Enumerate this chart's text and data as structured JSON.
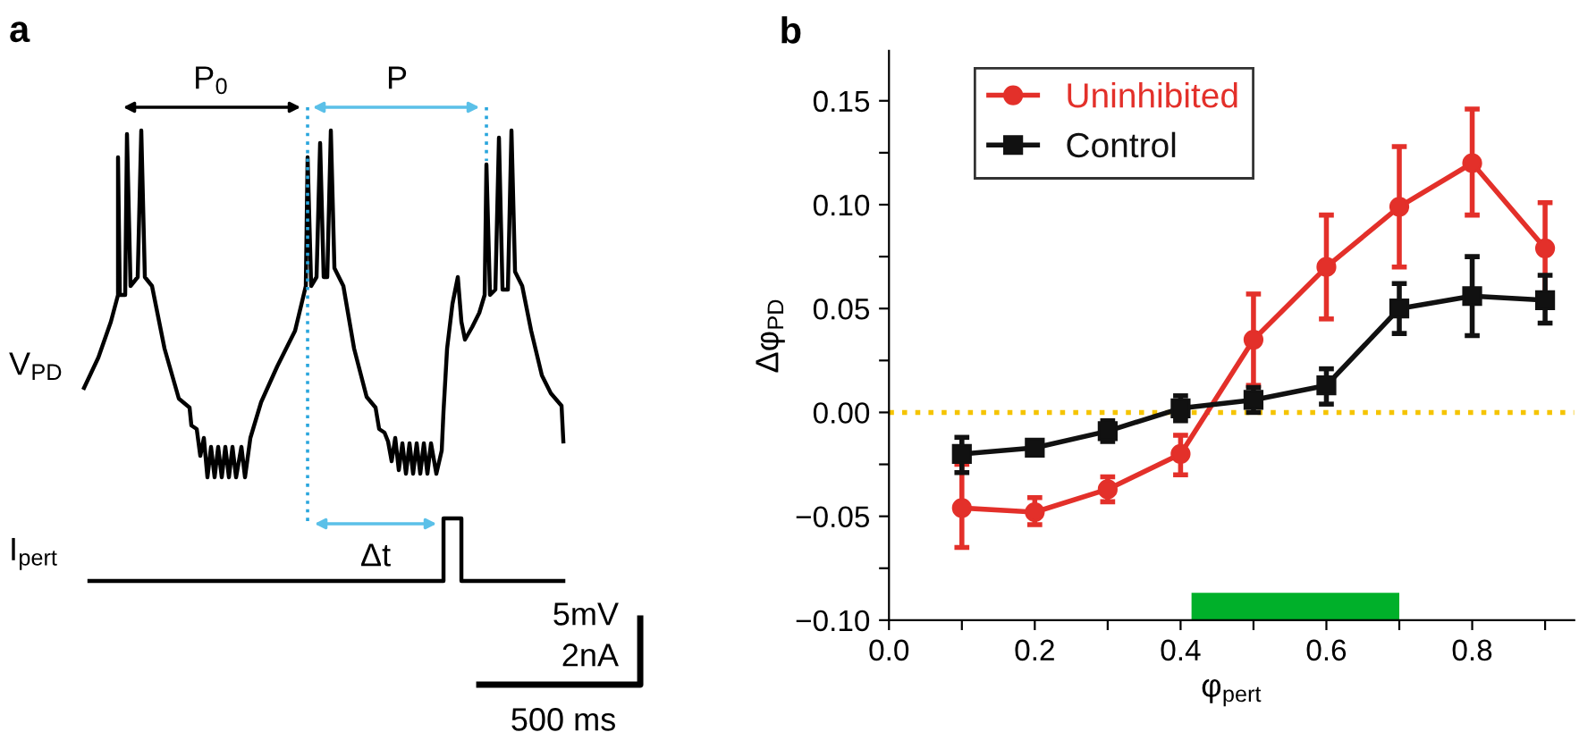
{
  "chart_data": [
    {
      "type": "other",
      "title": "a",
      "annotations": [
        "P$_{0}$",
        "P",
        "V$_{PD}$",
        "I$_{pert}$",
        "Δt",
        "5mV",
        "2nA",
        "500 ms"
      ]
    },
    {
      "type": "line",
      "title": "b",
      "xlabel": "φ$_{pert}$",
      "ylabel": "Δφ$_{PD}$",
      "x": [
        0.1,
        0.2,
        0.3,
        0.4,
        0.5,
        0.6,
        0.7,
        0.8,
        0.9
      ],
      "series": [
        {
          "name": "Uninhibited",
          "color": "#e3302a",
          "marker": "circle",
          "values": [
            -0.046,
            -0.048,
            -0.037,
            -0.02,
            0.035,
            0.07,
            0.099,
            0.12,
            0.079
          ],
          "errors": [
            [
              -0.065,
              -0.025
            ],
            [
              -0.054,
              -0.041
            ],
            [
              -0.043,
              -0.031
            ],
            [
              -0.03,
              -0.011
            ],
            [
              0.013,
              0.057
            ],
            [
              0.045,
              0.095
            ],
            [
              0.07,
              0.128
            ],
            [
              0.095,
              0.146
            ],
            [
              0.057,
              0.101
            ]
          ]
        },
        {
          "name": "Control",
          "color": "#111111",
          "marker": "square",
          "values": [
            -0.02,
            -0.017,
            -0.009,
            0.002,
            0.006,
            0.013,
            0.05,
            0.056,
            0.054
          ],
          "errors": [
            [
              -0.029,
              -0.012
            ],
            null,
            [
              -0.014,
              -0.004
            ],
            [
              -0.004,
              0.008
            ],
            [
              0.0,
              0.012
            ],
            [
              0.004,
              0.021
            ],
            [
              0.038,
              0.062
            ],
            [
              0.037,
              0.075
            ],
            [
              0.043,
              0.066
            ]
          ]
        }
      ],
      "xlim": [
        0.0,
        0.94
      ],
      "xticks": [
        {
          "value": 0.0,
          "label": "0.0"
        },
        {
          "value": 0.1,
          "label": null
        },
        0.2,
        {
          "value": 0.3,
          "label": null
        },
        0.4,
        {
          "value": 0.5,
          "label": null
        },
        0.6,
        {
          "value": 0.7,
          "label": null
        },
        0.8,
        {
          "value": 0.9,
          "label": null
        }
      ],
      "ylim": [
        -0.1,
        0.174
      ],
      "yticks": [
        {
          "value": -0.1,
          "label": "−0.10"
        },
        {
          "value": -0.075,
          "label": null
        },
        -0.05,
        {
          "value": -0.025,
          "label": null
        },
        {
          "value": 0.0,
          "label": "0.00"
        },
        {
          "value": 0.025,
          "label": null
        },
        0.05,
        {
          "value": 0.075,
          "label": null
        },
        {
          "value": 0.1,
          "label": "0.10"
        },
        {
          "value": 0.125,
          "label": null
        },
        0.15
      ],
      "ref_lines": [
        {
          "axis": "y",
          "value": 0,
          "color": "#f5c400",
          "line_style": "dotted"
        }
      ],
      "bands": [
        {
          "axis": "x",
          "from": 0.415,
          "to": 0.7,
          "color": "#00b02a"
        }
      ],
      "legend": "top left",
      "grid": false
    }
  ]
}
